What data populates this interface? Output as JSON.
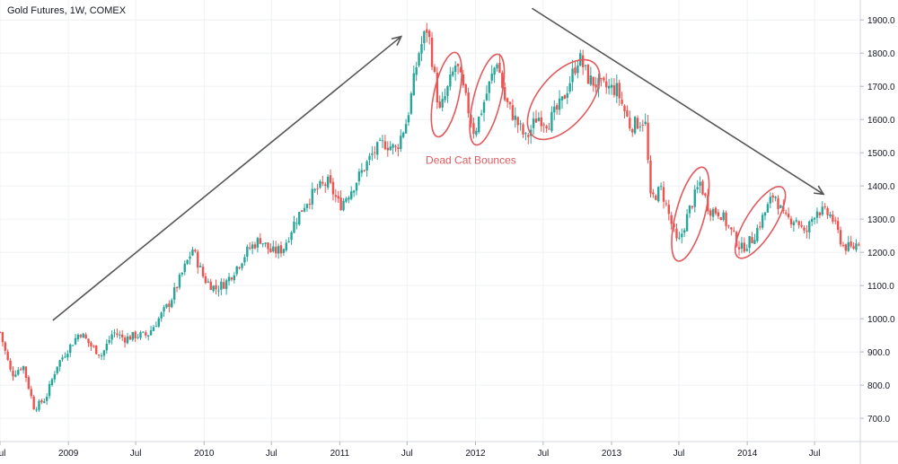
{
  "chart_data": {
    "type": "candlestick",
    "title": "Gold Futures, 1W, COMEX",
    "ylim": [
      630,
      1960
    ],
    "y_ticks": [
      700,
      800,
      900,
      1000,
      1100,
      1200,
      1300,
      1400,
      1500,
      1600,
      1700,
      1800,
      1900
    ],
    "y_tick_labels": [
      "700.0",
      "800.0",
      "900.0",
      "1000.0",
      "1100.0",
      "1200.0",
      "1300.0",
      "1400.0",
      "1500.0",
      "1600.0",
      "1700.0",
      "1800.0",
      "1900.0"
    ],
    "x_range": [
      "2008-07-01",
      "2014-11-01"
    ],
    "x_ticks": [
      {
        "label": "Jul",
        "date": "2008-07-01"
      },
      {
        "label": "2009",
        "date": "2009-01-01"
      },
      {
        "label": "Jul",
        "date": "2009-07-01"
      },
      {
        "label": "2010",
        "date": "2010-01-01"
      },
      {
        "label": "Jul",
        "date": "2010-07-01"
      },
      {
        "label": "2011",
        "date": "2011-01-01"
      },
      {
        "label": "Jul",
        "date": "2011-07-01"
      },
      {
        "label": "2012",
        "date": "2012-01-01"
      },
      {
        "label": "Jul",
        "date": "2012-07-01"
      },
      {
        "label": "2013",
        "date": "2013-01-01"
      },
      {
        "label": "Jul",
        "date": "2013-07-01"
      },
      {
        "label": "2014",
        "date": "2014-01-01"
      },
      {
        "label": "Jul",
        "date": "2014-07-01"
      }
    ],
    "price_path": [
      [
        "2008-07-01",
        960
      ],
      [
        "2008-08-01",
        830
      ],
      [
        "2008-09-01",
        860
      ],
      [
        "2008-10-01",
        730
      ],
      [
        "2008-11-01",
        760
      ],
      [
        "2008-12-01",
        860
      ],
      [
        "2009-02-01",
        960
      ],
      [
        "2009-03-01",
        920
      ],
      [
        "2009-04-01",
        890
      ],
      [
        "2009-05-01",
        960
      ],
      [
        "2009-06-01",
        940
      ],
      [
        "2009-07-01",
        950
      ],
      [
        "2009-08-01",
        950
      ],
      [
        "2009-09-01",
        1000
      ],
      [
        "2009-10-01",
        1050
      ],
      [
        "2009-12-01",
        1210
      ],
      [
        "2010-01-01",
        1120
      ],
      [
        "2010-02-01",
        1090
      ],
      [
        "2010-03-01",
        1110
      ],
      [
        "2010-04-01",
        1160
      ],
      [
        "2010-05-01",
        1210
      ],
      [
        "2010-06-01",
        1240
      ],
      [
        "2010-07-01",
        1200
      ],
      [
        "2010-08-01",
        1210
      ],
      [
        "2010-09-01",
        1290
      ],
      [
        "2010-10-01",
        1350
      ],
      [
        "2010-11-01",
        1390
      ],
      [
        "2010-12-01",
        1410
      ],
      [
        "2011-01-01",
        1340
      ],
      [
        "2011-02-01",
        1390
      ],
      [
        "2011-04-01",
        1500
      ],
      [
        "2011-05-01",
        1530
      ],
      [
        "2011-06-01",
        1510
      ],
      [
        "2011-07-01",
        1600
      ],
      [
        "2011-08-01",
        1800
      ],
      [
        "2011-08-25",
        1880
      ],
      [
        "2011-09-26",
        1620
      ],
      [
        "2011-10-15",
        1680
      ],
      [
        "2011-11-10",
        1770
      ],
      [
        "2011-12-29",
        1560
      ],
      [
        "2012-02-28",
        1780
      ],
      [
        "2012-03-20",
        1660
      ],
      [
        "2012-05-16",
        1540
      ],
      [
        "2012-06-15",
        1610
      ],
      [
        "2012-07-15",
        1590
      ],
      [
        "2012-08-20",
        1650
      ],
      [
        "2012-10-05",
        1790
      ],
      [
        "2012-11-01",
        1720
      ],
      [
        "2012-12-01",
        1700
      ],
      [
        "2013-01-15",
        1690
      ],
      [
        "2013-02-20",
        1580
      ],
      [
        "2013-04-01",
        1600
      ],
      [
        "2013-04-16",
        1360
      ],
      [
        "2013-05-15",
        1390
      ],
      [
        "2013-06-28",
        1220
      ],
      [
        "2013-07-30",
        1330
      ],
      [
        "2013-08-27",
        1410
      ],
      [
        "2013-09-20",
        1330
      ],
      [
        "2013-10-20",
        1320
      ],
      [
        "2013-12-15",
        1210
      ],
      [
        "2014-01-15",
        1240
      ],
      [
        "2014-03-15",
        1380
      ],
      [
        "2014-04-10",
        1300
      ],
      [
        "2014-05-15",
        1300
      ],
      [
        "2014-06-05",
        1250
      ],
      [
        "2014-07-05",
        1330
      ],
      [
        "2014-08-15",
        1310
      ],
      [
        "2014-09-15",
        1220
      ],
      [
        "2014-10-10",
        1210
      ],
      [
        "2014-11-01",
        1240
      ]
    ],
    "annotations": {
      "text": "Dead Cat Bounces",
      "color_annotation": "#e05a5e",
      "color_arrow": "#555555"
    },
    "colors": {
      "up": "#26a69a",
      "down": "#ef5350",
      "grid": "#eef1f4",
      "axis_text": "#131722"
    }
  }
}
